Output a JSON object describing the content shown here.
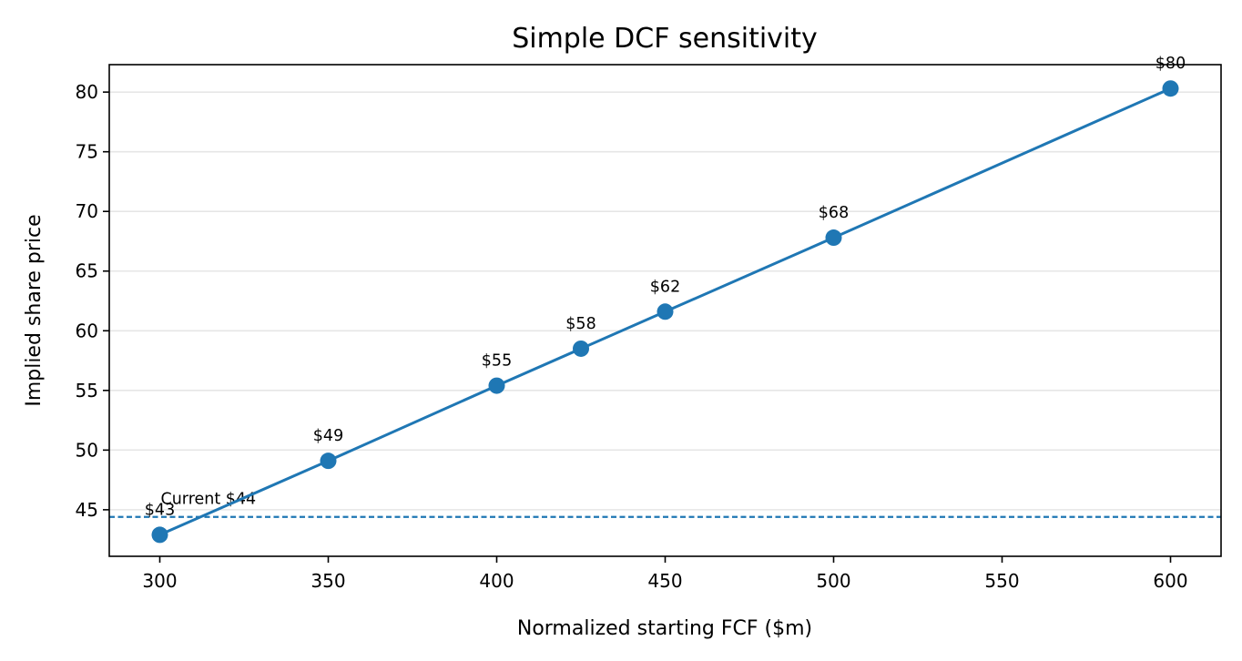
{
  "chart_data": {
    "type": "line",
    "title": "Simple DCF sensitivity",
    "xlabel": "Normalized starting FCF ($m)",
    "ylabel": "Implied share price",
    "xlim": [
      285,
      615
    ],
    "ylim": [
      41.1,
      82.3
    ],
    "xticks": [
      300,
      350,
      400,
      450,
      500,
      550,
      600
    ],
    "yticks": [
      45,
      50,
      55,
      60,
      65,
      70,
      75,
      80
    ],
    "grid": "y",
    "color": "#1f77b4",
    "series": [
      {
        "x": [
          300,
          350,
          400,
          425,
          450,
          500,
          600
        ],
        "y": [
          42.9,
          49.1,
          55.4,
          58.5,
          61.6,
          67.8,
          80.3
        ],
        "labels": [
          "$43",
          "$49",
          "$55",
          "$58",
          "$62",
          "$68",
          "$80"
        ]
      }
    ],
    "reference_line": {
      "y": 44.4,
      "label": "Current $44",
      "style": "dashed"
    }
  }
}
